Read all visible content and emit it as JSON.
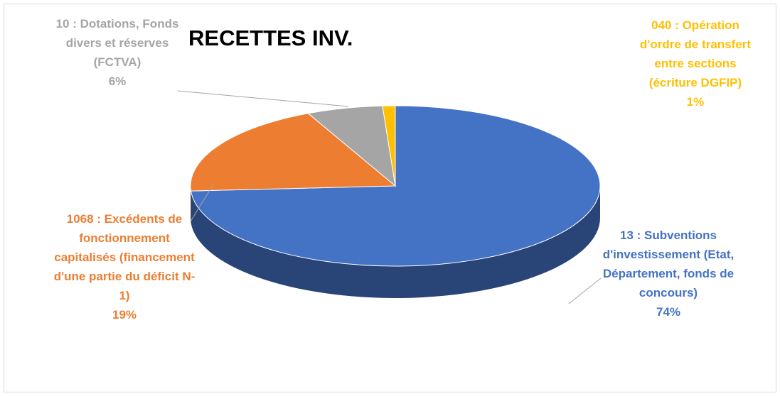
{
  "chart_data": {
    "type": "pie",
    "title": "RECETTES INV.",
    "categories": [
      "13 : Subventions d'investissement (Etat, Département, fonds de concours)",
      "1068 : Excédents de fonctionnement capitalisés (financement d'une partie du déficit N-1)",
      "10 : Dotations, Fonds divers et réserves (FCTVA)",
      "040 : Opération d'ordre de transfert entre sections (écriture DGFIP)"
    ],
    "values": [
      74,
      19,
      6,
      1
    ],
    "value_labels": [
      "74%",
      "19%",
      "6%",
      "1%"
    ],
    "colors": [
      "#4472c4",
      "#ed7d31",
      "#a5a5a5",
      "#ffc000"
    ]
  }
}
